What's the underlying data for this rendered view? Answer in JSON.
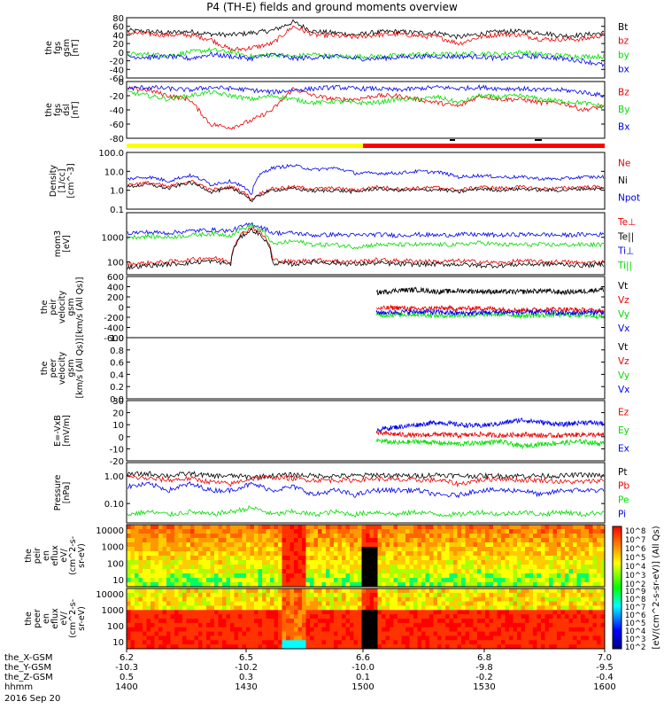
{
  "title": "P4 (TH-E) fields and ground moments overview",
  "colors": {
    "black": "#000000",
    "red": "#ee0000",
    "green": "#00dd00",
    "blue": "#0000ee",
    "mode_slow": "#ffff00",
    "mode_fast": "#ff0000"
  },
  "chart_data": [
    {
      "type": "line",
      "panel": "fgs_gsm",
      "ylabel": [
        "the",
        "fgs",
        "gsm",
        "[nT]"
      ],
      "ylim": [
        -60,
        80
      ],
      "yticks": [
        "80",
        "60",
        "40",
        "20",
        "0",
        "-20",
        "-40",
        "-60"
      ],
      "legend": [
        "Bt",
        "bz",
        "by",
        "bx"
      ],
      "series": [
        {
          "name": "Bt",
          "color": "black",
          "values": [
            50,
            48,
            45,
            48,
            42,
            40,
            45,
            50,
            70,
            48,
            45,
            40,
            46,
            48,
            45,
            45,
            35,
            42,
            48,
            48,
            45,
            38,
            40,
            45
          ]
        },
        {
          "name": "bz",
          "color": "red",
          "values": [
            45,
            42,
            40,
            40,
            30,
            5,
            10,
            20,
            60,
            40,
            38,
            35,
            40,
            42,
            38,
            35,
            20,
            35,
            42,
            40,
            30,
            30,
            30,
            40
          ]
        },
        {
          "name": "by",
          "color": "green",
          "values": [
            -5,
            -5,
            -8,
            0,
            5,
            0,
            -10,
            -5,
            -10,
            -5,
            -10,
            -10,
            -10,
            -8,
            -5,
            -5,
            -5,
            -3,
            -5,
            0,
            -5,
            -8,
            -10,
            -10
          ]
        },
        {
          "name": "bx",
          "color": "blue",
          "values": [
            -10,
            -12,
            -10,
            -15,
            -5,
            -10,
            -15,
            -5,
            -15,
            -12,
            -10,
            -15,
            -15,
            -12,
            -10,
            -10,
            -10,
            -10,
            -15,
            -10,
            -10,
            -15,
            -20,
            -30
          ]
        }
      ]
    },
    {
      "type": "line",
      "panel": "fgs_dsl",
      "ylabel": [
        "the",
        "fgs",
        "dsl",
        "[nT]"
      ],
      "ylim": [
        -80,
        0
      ],
      "yticks": [
        "0",
        "-20",
        "-40",
        "-60",
        "-80"
      ],
      "legend": [
        "Bz",
        "By",
        "Bx"
      ],
      "series": [
        {
          "name": "Bz",
          "color": "red",
          "values": [
            -10,
            -12,
            -20,
            -25,
            -60,
            -65,
            -55,
            -40,
            -10,
            -20,
            -25,
            -25,
            -20,
            -20,
            -25,
            -30,
            -35,
            -20,
            -25,
            -25,
            -30,
            -30,
            -40,
            -35
          ]
        },
        {
          "name": "By",
          "color": "green",
          "values": [
            -15,
            -20,
            -25,
            -20,
            -15,
            -20,
            -25,
            -20,
            -25,
            -30,
            -28,
            -30,
            -30,
            -25,
            -25,
            -22,
            -30,
            -20,
            -22,
            -20,
            -25,
            -28,
            -30,
            -35
          ]
        },
        {
          "name": "Bx",
          "color": "blue",
          "values": [
            -10,
            -8,
            -10,
            -12,
            -8,
            -10,
            -12,
            -15,
            -12,
            -10,
            -8,
            -10,
            -10,
            -12,
            -10,
            -8,
            -10,
            -8,
            -10,
            -10,
            -12,
            -12,
            -15,
            -20
          ]
        }
      ]
    },
    {
      "type": "line",
      "panel": "density",
      "ylabel": [
        "Density",
        "[1/cc]",
        "[cm^-3]"
      ],
      "ylim": [
        0.1,
        100
      ],
      "log": true,
      "yticks": [
        "100.0",
        "10.0",
        "1.0",
        "0.1"
      ],
      "legend": [
        "Ne",
        "Ni",
        "Npot"
      ],
      "series": [
        {
          "name": "Ne",
          "color": "red",
          "values": [
            2,
            2.5,
            1.5,
            3,
            1,
            1.5,
            0.3,
            1.2,
            1.5,
            1.2,
            1.3,
            1,
            1.5,
            1.2,
            1.3,
            1.4,
            1,
            1.5,
            1.3,
            1.5,
            1.2,
            1.3,
            1.5,
            1.5
          ]
        },
        {
          "name": "Ni",
          "color": "black",
          "values": [
            1.5,
            2,
            1.2,
            2.5,
            0.8,
            1.2,
            0.25,
            1,
            1.2,
            0.9,
            1,
            0.8,
            1.2,
            1,
            1,
            1.1,
            0.8,
            1.2,
            1,
            1.2,
            1,
            1,
            1.2,
            1.2
          ]
        },
        {
          "name": "Npot",
          "color": "blue",
          "values": [
            4,
            5,
            3,
            6,
            2,
            3,
            0.4,
            15,
            20,
            12,
            15,
            8,
            8,
            8,
            10,
            9,
            5,
            6,
            5,
            5,
            4,
            4,
            5,
            5
          ]
        }
      ]
    },
    {
      "type": "line",
      "panel": "temperature",
      "ylabel": [
        "mom3",
        "[eV]"
      ],
      "ylim": [
        30,
        10000
      ],
      "log": true,
      "yticks": [
        "1000",
        "100"
      ],
      "legend": [
        "Te⊥",
        "Te||",
        "Ti⊥",
        "Ti||"
      ],
      "series": [
        {
          "name": "Te⊥",
          "color": "red",
          "values": [
            80,
            90,
            100,
            120,
            150,
            100,
            2500,
            120,
            100,
            120,
            110,
            100,
            120,
            110,
            110,
            100,
            110,
            100,
            90,
            110,
            100,
            100,
            90,
            100
          ]
        },
        {
          "name": "Te||",
          "color": "black",
          "values": [
            60,
            70,
            80,
            90,
            110,
            80,
            2000,
            90,
            80,
            100,
            90,
            80,
            90,
            80,
            80,
            80,
            80,
            70,
            70,
            80,
            80,
            80,
            70,
            80
          ]
        },
        {
          "name": "Ti⊥",
          "color": "blue",
          "values": [
            1500,
            1600,
            1500,
            1800,
            2000,
            1800,
            3500,
            1500,
            1500,
            1200,
            1300,
            1200,
            1300,
            1200,
            1300,
            1200,
            1300,
            1300,
            1200,
            1300,
            1300,
            1200,
            1300,
            1300
          ]
        },
        {
          "name": "Ti||",
          "color": "green",
          "values": [
            1000,
            1100,
            1000,
            1200,
            1400,
            1200,
            3000,
            500,
            700,
            500,
            500,
            400,
            500,
            500,
            500,
            500,
            500,
            600,
            500,
            500,
            500,
            500,
            500,
            500
          ]
        }
      ]
    },
    {
      "type": "line",
      "panel": "peir_velocity",
      "ylabel": [
        "the",
        "peir",
        "velocity",
        "gsm",
        "[km/s (All Qs)]"
      ],
      "ylim": [
        -600,
        600
      ],
      "yticks": [
        "600",
        "400",
        "200",
        "0",
        "-200",
        "-400",
        "-600"
      ],
      "legend": [
        "Vt",
        "Vz",
        "Vy",
        "Vx"
      ],
      "series": [
        {
          "name": "Vt",
          "color": "black",
          "values": [
            280,
            330,
            340,
            300,
            320,
            310,
            300,
            300,
            320,
            290,
            310,
            350
          ]
        },
        {
          "name": "Vz",
          "color": "red",
          "values": [
            -30,
            -10,
            -40,
            -20,
            -30,
            -20,
            -40,
            -60,
            -50,
            -40,
            -60,
            -80
          ]
        },
        {
          "name": "Vy",
          "color": "green",
          "values": [
            -160,
            -150,
            -140,
            -170,
            -160,
            -150,
            -140,
            -170,
            -160,
            -150,
            -160,
            -180
          ]
        },
        {
          "name": "Vx",
          "color": "blue",
          "values": [
            -110,
            -100,
            -90,
            -100,
            -120,
            -110,
            -100,
            -110,
            -100,
            -120,
            -110,
            -100
          ]
        }
      ]
    },
    {
      "type": "line",
      "panel": "peer_velocity",
      "ylabel": [
        "the",
        "peer",
        "velocity",
        "gsm",
        "[km/s (All Qs)]"
      ],
      "ylim": [
        0,
        1
      ],
      "yticks": [
        "1.0",
        "0.8",
        "0.6",
        "0.4",
        "0.2",
        "0.0"
      ],
      "legend": [
        "Vt",
        "Vz",
        "Vy",
        "Vx"
      ],
      "series": []
    },
    {
      "type": "line",
      "panel": "e_field",
      "ylabel": [
        "E=-VxB",
        "[mV/m]"
      ],
      "ylim": [
        -20,
        30
      ],
      "yticks": [
        "30",
        "20",
        "10",
        "0",
        "-10",
        "-20"
      ],
      "legend": [
        "Ez",
        "Ey",
        "Ex"
      ],
      "series": [
        {
          "name": "Ez",
          "color": "red",
          "values": [
            3,
            2,
            1,
            2,
            1,
            2,
            1,
            2,
            1,
            1,
            2,
            1
          ]
        },
        {
          "name": "Ey",
          "color": "green",
          "values": [
            -3,
            -5,
            -4,
            -5,
            -6,
            -5,
            -4,
            -8,
            -6,
            -5,
            -4,
            -6
          ]
        },
        {
          "name": "Ex",
          "color": "blue",
          "values": [
            6,
            8,
            10,
            12,
            10,
            9,
            11,
            14,
            12,
            10,
            12,
            11
          ]
        }
      ]
    },
    {
      "type": "line",
      "panel": "pressure",
      "ylabel": [
        "Pressure",
        "[nPa]"
      ],
      "ylim": [
        0.02,
        3
      ],
      "log": true,
      "yticks": [
        "1.00",
        "0.10"
      ],
      "legend": [
        "Pt",
        "Pb",
        "Pe",
        "Pi"
      ],
      "series": [
        {
          "name": "Pt",
          "color": "black",
          "values": [
            1.1,
            1.2,
            1,
            1.2,
            1,
            1,
            0.9,
            1,
            1.1,
            1,
            1,
            1,
            1.1,
            1,
            1,
            1.1,
            1,
            1,
            1,
            1,
            1,
            1,
            1.1,
            1
          ]
        },
        {
          "name": "Pb",
          "color": "red",
          "values": [
            0.9,
            0.8,
            0.7,
            0.8,
            0.6,
            0.5,
            0.8,
            0.9,
            0.8,
            0.7,
            0.7,
            0.7,
            0.8,
            0.7,
            0.7,
            0.7,
            0.5,
            0.7,
            0.8,
            0.7,
            0.7,
            0.6,
            0.6,
            0.7
          ]
        },
        {
          "name": "Pe",
          "color": "green",
          "values": [
            0.04,
            0.05,
            0.04,
            0.05,
            0.04,
            0.05,
            0.07,
            0.04,
            0.05,
            0.04,
            0.05,
            0.04,
            0.05,
            0.04,
            0.05,
            0.04,
            0.04,
            0.05,
            0.04,
            0.05,
            0.04,
            0.05,
            0.04,
            0.05
          ]
        },
        {
          "name": "Pi",
          "color": "blue",
          "values": [
            0.4,
            0.5,
            0.3,
            0.5,
            0.3,
            0.3,
            0.5,
            0.3,
            0.4,
            0.2,
            0.3,
            0.2,
            0.3,
            0.3,
            0.3,
            0.2,
            0.2,
            0.3,
            0.3,
            0.3,
            0.2,
            0.3,
            0.3,
            0.3
          ]
        }
      ]
    },
    {
      "type": "heatmap",
      "panel": "peir_eflux",
      "ylabel": [
        "the",
        "peir",
        "en",
        "eflux",
        "eV/",
        "(cm^2-s-",
        "sr-eV)"
      ],
      "yticks": [
        "10000",
        "1000",
        "100",
        "10"
      ]
    },
    {
      "type": "heatmap",
      "panel": "peer_eflux",
      "ylabel": [
        "the",
        "peer",
        "en",
        "eflux",
        "eV/",
        "(cm^2-s-",
        "sr-eV)"
      ],
      "yticks": [
        "10000",
        "1000",
        "100",
        "10"
      ]
    }
  ],
  "colorbar": {
    "label": "[eV/(cm^2-s-sr-eV)] (All Qs)",
    "ticks_upper": [
      "10^8",
      "10^7",
      "10^6",
      "10^5",
      "10^4",
      "10^3",
      "10^2"
    ],
    "ticks_lower": [
      "10^9",
      "10^8",
      "10^7",
      "10^6",
      "10^5",
      "10^4",
      "10^3",
      "10^2"
    ]
  },
  "xaxis": {
    "row_labels": [
      "the_X-GSM",
      "the_Y-GSM",
      "the_Z-GSM",
      "hhmm"
    ],
    "columns": [
      [
        "6.2",
        "-10.3",
        "0.5",
        "1400"
      ],
      [
        "6.5",
        "-10.2",
        "0.3",
        "1430"
      ],
      [
        "6.6",
        "-10.0",
        "0.1",
        "1500"
      ],
      [
        "6.8",
        "-9.8",
        "-0.2",
        "1530"
      ],
      [
        "7.0",
        "-9.5",
        "-0.4",
        "1600"
      ]
    ],
    "date": "2016 Sep 20"
  }
}
